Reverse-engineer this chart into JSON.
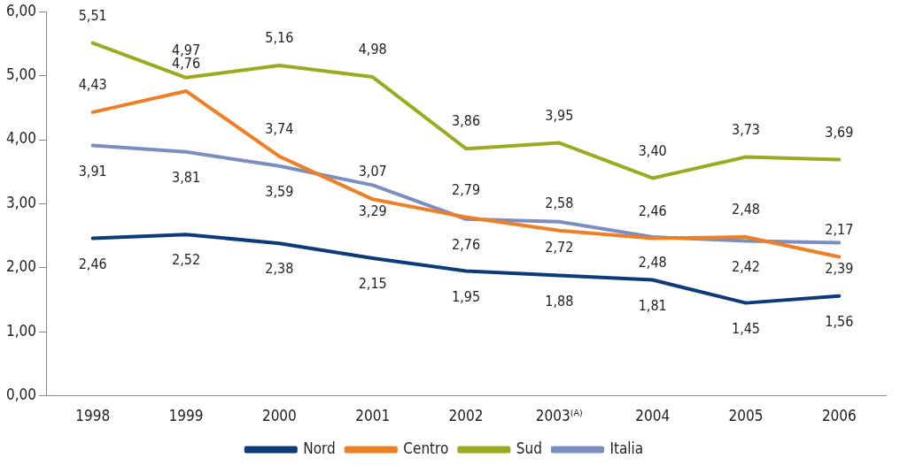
{
  "chart_data": {
    "type": "line",
    "categories": [
      "1998",
      "1999",
      "2000",
      "2001",
      "2002",
      "2003⁽ᴬ⁾",
      "2004",
      "2005",
      "2006"
    ],
    "series": [
      {
        "name": "Nord",
        "color": "#0d3a7a",
        "values": [
          2.46,
          2.52,
          2.38,
          2.15,
          1.95,
          1.88,
          1.81,
          1.45,
          1.56
        ],
        "value_labels": [
          "2,46",
          "2,52",
          "2,38",
          "2,15",
          "1,95",
          "1,88",
          "1,81",
          "1,45",
          "1,56"
        ]
      },
      {
        "name": "Centro",
        "color": "#f07f24",
        "values": [
          4.43,
          4.76,
          3.74,
          3.07,
          2.79,
          2.58,
          2.46,
          2.48,
          2.17
        ],
        "value_labels": [
          "4,43",
          "4,76",
          "3,74",
          "3,07",
          "2,79",
          "2,58",
          "2,46",
          "2,48",
          "2,17"
        ]
      },
      {
        "name": "Sud",
        "color": "#9aab1f",
        "values": [
          5.51,
          4.97,
          5.16,
          4.98,
          3.86,
          3.95,
          3.4,
          3.73,
          3.69
        ],
        "value_labels": [
          "5,51",
          "4,97",
          "5,16",
          "4,98",
          "3,86",
          "3,95",
          "3,40",
          "3,73",
          "3,69"
        ]
      },
      {
        "name": "Italia",
        "color": "#7a8fbf",
        "values": [
          3.91,
          3.81,
          3.59,
          3.29,
          2.76,
          2.72,
          2.48,
          2.42,
          2.39
        ],
        "value_labels": [
          "3,91",
          "3,81",
          "3,59",
          "3,29",
          "2,76",
          "2,72",
          "2,48",
          "2,42",
          "2,39"
        ]
      }
    ],
    "ylim": [
      0,
      6
    ],
    "yticks": [
      {
        "value": 0,
        "label": "0,00"
      },
      {
        "value": 1,
        "label": "1,00"
      },
      {
        "value": 2,
        "label": "2,00"
      },
      {
        "value": 3,
        "label": "3,00"
      },
      {
        "value": 4,
        "label": "4,00"
      },
      {
        "value": 5,
        "label": "5,00"
      },
      {
        "value": 6,
        "label": "6,00"
      }
    ],
    "grid": false,
    "legend": "bottom",
    "marker": "none",
    "line_style": "solid"
  }
}
